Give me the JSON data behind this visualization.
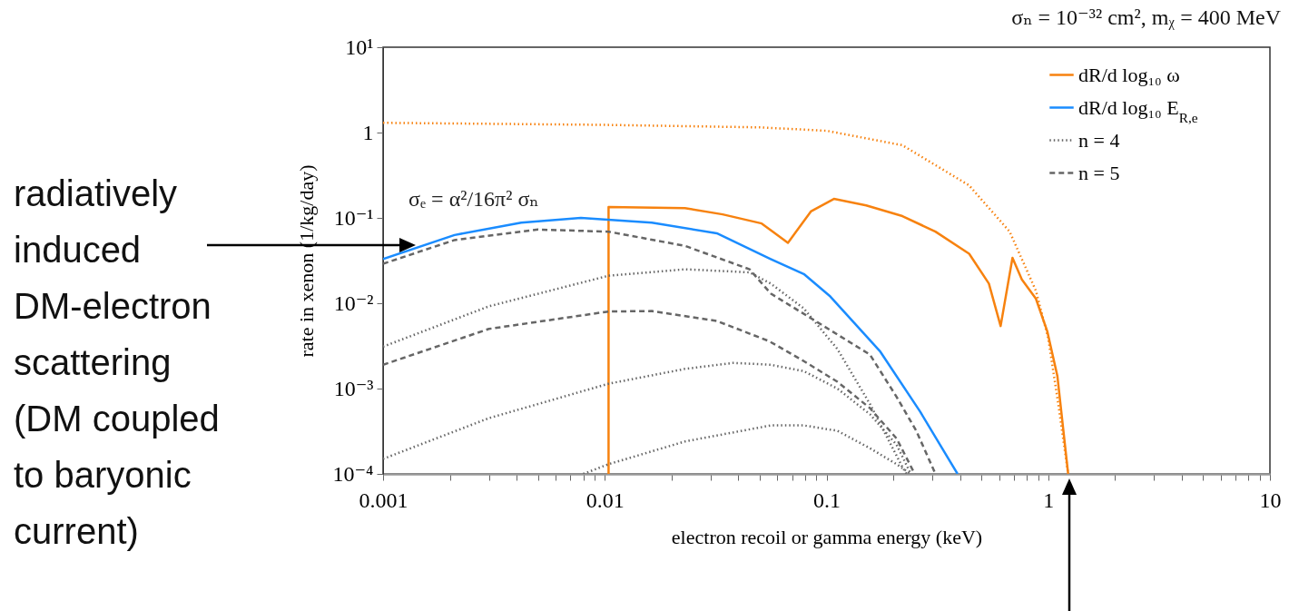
{
  "chart_data": {
    "type": "line",
    "title": "σₙ = 10⁻³² cm²,  mᵪ = 400 MeV",
    "xlabel": "electron recoil or gamma energy (keV)",
    "ylabel": "rate in xenon (1/kg/day)",
    "log": "xy",
    "xlim": [
      0.001,
      10
    ],
    "ylim": [
      0.0001,
      10
    ],
    "xticks": [
      0.001,
      {
        "value": 0.002,
        "label": null
      },
      {
        "value": 0.003,
        "label": null
      },
      {
        "value": 0.004,
        "label": null
      },
      {
        "value": 0.005,
        "label": null
      },
      {
        "value": 0.006,
        "label": null
      },
      {
        "value": 0.007,
        "label": null
      },
      {
        "value": 0.008,
        "label": null
      },
      {
        "value": 0.009,
        "label": null
      },
      0.01,
      {
        "value": 0.02,
        "label": null
      },
      {
        "value": 0.03,
        "label": null
      },
      {
        "value": 0.04,
        "label": null
      },
      {
        "value": 0.05,
        "label": null
      },
      {
        "value": 0.06,
        "label": null
      },
      {
        "value": 0.07,
        "label": null
      },
      {
        "value": 0.08,
        "label": null
      },
      {
        "value": 0.09,
        "label": null
      },
      0.1,
      {
        "value": 0.2,
        "label": null
      },
      {
        "value": 0.3,
        "label": null
      },
      {
        "value": 0.4,
        "label": null
      },
      {
        "value": 0.5,
        "label": null
      },
      {
        "value": 0.6,
        "label": null
      },
      {
        "value": 0.7,
        "label": null
      },
      {
        "value": 0.8,
        "label": null
      },
      {
        "value": 0.9,
        "label": null
      },
      1,
      {
        "value": 2,
        "label": null
      },
      {
        "value": 3,
        "label": null
      },
      {
        "value": 4,
        "label": null
      },
      {
        "value": 5,
        "label": null
      },
      {
        "value": 6,
        "label": null
      },
      {
        "value": 7,
        "label": null
      },
      {
        "value": 8,
        "label": null
      },
      {
        "value": 9,
        "label": null
      },
      10
    ],
    "yticks": [
      {
        "value": 0.0001,
        "label": "10⁻⁴"
      },
      {
        "value": 0.001,
        "label": "10⁻³"
      },
      {
        "value": 0.01,
        "label": "10⁻²"
      },
      {
        "value": 0.1,
        "label": "10⁻¹"
      },
      1,
      {
        "value": 10,
        "label": "10¹"
      }
    ],
    "legend": "top right",
    "grid": false,
    "series": [
      {
        "name": "dR/d log₁₀ ω",
        "color": "#f7820f",
        "line_style": "solid",
        "x": [
          0.0104,
          0.0104,
          0.023,
          0.034,
          0.051,
          0.067,
          0.085,
          0.108,
          0.151,
          0.22,
          0.31,
          0.44,
          0.54,
          0.61,
          0.69,
          0.76,
          0.88,
          0.99,
          1.1,
          1.23
        ],
        "values": [
          0.0001,
          0.134,
          0.13,
          0.11,
          0.086,
          0.051,
          0.119,
          0.167,
          0.14,
          0.105,
          0.069,
          0.038,
          0.017,
          0.0054,
          0.034,
          0.019,
          0.0113,
          0.0047,
          0.0014,
          0.0001
        ]
      },
      {
        "name": "dR/d log₁₀ E$_{R,e}$",
        "color": "#1a8cff",
        "line_style": "solid",
        "x": [
          0.001,
          0.0021,
          0.0042,
          0.0078,
          0.0163,
          0.032,
          0.056,
          0.079,
          0.104,
          0.175,
          0.264,
          0.39
        ],
        "values": [
          0.033,
          0.063,
          0.088,
          0.1,
          0.088,
          0.066,
          0.033,
          0.022,
          0.012,
          0.0027,
          0.00054,
          0.0001
        ]
      },
      {
        "name": "n = 4",
        "color": "#666666",
        "line_style": "dotted",
        "x": [
          0.001,
          0.003,
          0.0104,
          0.023,
          0.045,
          0.056,
          0.079,
          0.112,
          0.157,
          0.22,
          0.23
        ],
        "values": [
          0.0031,
          0.0092,
          0.021,
          0.025,
          0.023,
          0.017,
          0.0087,
          0.0029,
          0.00066,
          0.00012,
          0.0001
        ]
      },
      {
        "color": "#666666",
        "line_style": "dotted",
        "x": [
          0.001,
          0.003,
          0.0104,
          0.023,
          0.038,
          0.056,
          0.079,
          0.112,
          0.157,
          0.207,
          0.24
        ],
        "values": [
          0.00015,
          0.00045,
          0.00114,
          0.0017,
          0.002,
          0.0019,
          0.0016,
          0.001,
          0.0005,
          0.00022,
          0.0001
        ]
      },
      {
        "color": "#666666",
        "line_style": "dotted",
        "x": [
          0.008,
          0.0104,
          0.023,
          0.056,
          0.079,
          0.112,
          0.157,
          0.207,
          0.24
        ],
        "values": [
          0.0001,
          0.00013,
          0.00024,
          0.00037,
          0.00037,
          0.00032,
          0.0002,
          0.00013,
          0.0001
        ]
      },
      {
        "name": "n = 5",
        "color": "#666666",
        "line_style": "dashed",
        "x": [
          0.001,
          0.0021,
          0.005,
          0.0104,
          0.023,
          0.045,
          0.056,
          0.112,
          0.157,
          0.207,
          0.254,
          0.31
        ],
        "values": [
          0.029,
          0.055,
          0.073,
          0.069,
          0.047,
          0.025,
          0.013,
          0.0043,
          0.0025,
          0.0008,
          0.00032,
          0.0001
        ]
      },
      {
        "color": "#666666",
        "line_style": "dashed",
        "x": [
          0.001,
          0.003,
          0.0104,
          0.0163,
          0.032,
          0.055,
          0.079,
          0.112,
          0.157,
          0.207,
          0.25
        ],
        "values": [
          0.0019,
          0.005,
          0.008,
          0.0081,
          0.0062,
          0.0036,
          0.0021,
          0.0012,
          0.00059,
          0.00026,
          0.0001
        ]
      },
      {
        "color": "#f7820f",
        "line_style": "dotted",
        "x": [
          0.001,
          0.01,
          0.05,
          0.1,
          0.22,
          0.44,
          0.67,
          0.88,
          1.0,
          1.11,
          1.23
        ],
        "values": [
          1.3,
          1.23,
          1.15,
          1.05,
          0.71,
          0.24,
          0.069,
          0.014,
          0.0039,
          0.00066,
          0.0001
        ]
      }
    ],
    "annotations": [
      "σₑ = α²/16π² σₙ",
      "radiatively induced DM-electron scattering (DM coupled to baryonic current)"
    ]
  }
}
